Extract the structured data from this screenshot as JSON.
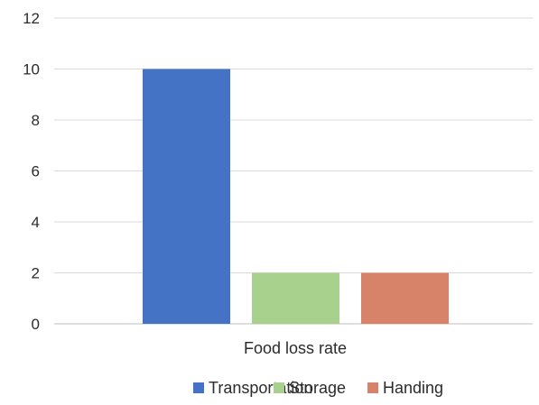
{
  "chart_data": {
    "type": "bar",
    "categories": [
      "Food loss rate"
    ],
    "series": [
      {
        "name": "Transportation",
        "values": [
          10
        ],
        "color": "#4472C4"
      },
      {
        "name": "Storage",
        "values": [
          2
        ],
        "color": "#A9D18E"
      },
      {
        "name": "Handing",
        "values": [
          2
        ],
        "color": "#D6836A"
      }
    ],
    "ylim": [
      0,
      12
    ],
    "yticks": [
      0,
      2,
      4,
      6,
      8,
      10,
      12
    ],
    "grid": true,
    "legend": "bottom",
    "title": "",
    "xlabel": "",
    "ylabel": ""
  }
}
